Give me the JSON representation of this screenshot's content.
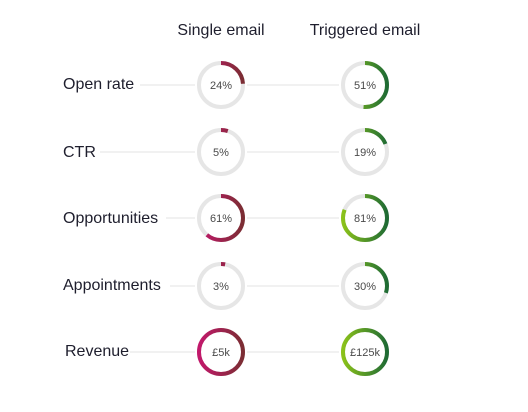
{
  "chart_data": {
    "type": "donut-grid",
    "columns": [
      "Single email",
      "Triggered email"
    ],
    "rows": [
      {
        "label": "Open rate",
        "values": [
          24,
          51
        ],
        "display": [
          "24%",
          "51%"
        ]
      },
      {
        "label": "CTR",
        "values": [
          5,
          19
        ],
        "display": [
          "5%",
          "19%"
        ]
      },
      {
        "label": "Opportunities",
        "values": [
          61,
          81
        ],
        "display": [
          "61%",
          "81%"
        ]
      },
      {
        "label": "Appointments",
        "values": [
          3,
          30
        ],
        "display": [
          "3%",
          "30%"
        ]
      },
      {
        "label": "Revenue",
        "values": [
          100,
          100
        ],
        "display": [
          "£5k",
          "£125k"
        ]
      }
    ],
    "colors": {
      "single_start": "#c2186b",
      "single_end": "#7b2d33",
      "triggered_start": "#8bc21a",
      "triggered_end": "#1f6b34",
      "track": "#e6e6e6",
      "connector": "#e3e3e3"
    }
  }
}
